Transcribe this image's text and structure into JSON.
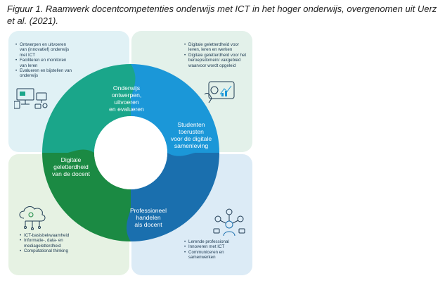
{
  "figure": {
    "caption": "Figuur 1. Raamwerk docentcompetenties onderwijs met ICT in het hoger onderwijs, overgenomen uit Uerz et al. (2021)."
  },
  "colors": {
    "teal": "#1aa68a",
    "blue_light": "#1b97d8",
    "green_dark": "#1b8a43",
    "blue_dark": "#1a6fae",
    "text_dark": "#1e3a52"
  },
  "ring": {
    "top_left": "Onderwijs\nontwerpen,\nuitvoeren\nen evalueren",
    "top_right": "Studenten\ntoerusten\nvoor de digitale\nsamenleving",
    "bottom_left": "Digitale\ngeletterdheid\nvan de docent",
    "bottom_right": "Professioneel\nhandelen\nals docent"
  },
  "quadrants": {
    "top_left": {
      "icon": "monitors-icon",
      "bullets": [
        "Ontwerpen en uitvoeren van (innovatief) onderwijs met ICT",
        "Faciliteren en monitoren van leren",
        "Evalueren en bijstellen van onderwijs"
      ]
    },
    "top_right": {
      "icon": "tablet-icon",
      "bullets": [
        "Digitale geletterdheid voor leven, leren en werken",
        "Digitale geletterdheid voor het beroepsdomein/ vakgebied waarvoor wordt opgeleid"
      ]
    },
    "bottom_left": {
      "icon": "cloud-icon",
      "bullets": [
        "ICT-basisbekwaamheid",
        "Informatie-, data- en mediageletterdheid",
        "Computational thinking"
      ]
    },
    "bottom_right": {
      "icon": "network-icon",
      "bullets": [
        "Lerende professional",
        "Innoveren met ICT",
        "Communiceren en samenwerken"
      ]
    }
  }
}
